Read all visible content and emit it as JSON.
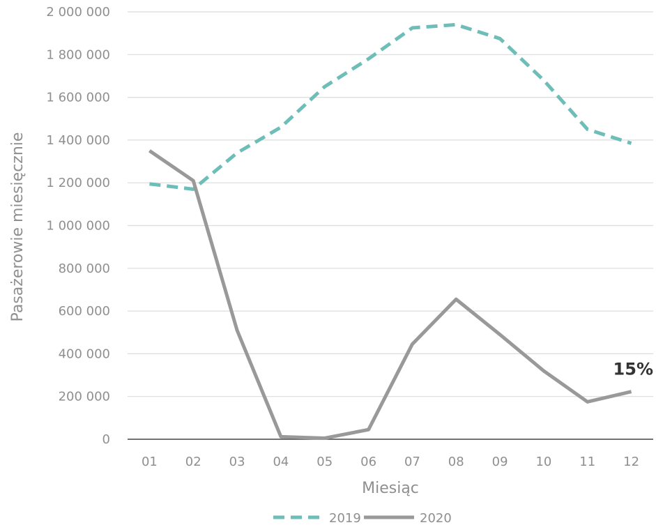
{
  "chart_data": {
    "type": "line",
    "title": "",
    "xlabel": "Miesiąc",
    "ylabel": "Pasażerowie miesięcznie",
    "categories": [
      "01",
      "02",
      "03",
      "04",
      "05",
      "06",
      "07",
      "08",
      "09",
      "10",
      "11",
      "12"
    ],
    "ylim": [
      0,
      2000000
    ],
    "y_ticks": [
      {
        "value": 0,
        "label": "0"
      },
      {
        "value": 200000,
        "label": "200 000"
      },
      {
        "value": 400000,
        "label": "400 000"
      },
      {
        "value": 600000,
        "label": "600 000"
      },
      {
        "value": 800000,
        "label": "800 000"
      },
      {
        "value": 1000000,
        "label": "1 000 000"
      },
      {
        "value": 1200000,
        "label": "1 200 000"
      },
      {
        "value": 1400000,
        "label": "1 400 000"
      },
      {
        "value": 1600000,
        "label": "1 600 000"
      },
      {
        "value": 1800000,
        "label": "1 800 000"
      },
      {
        "value": 2000000,
        "label": "2 000 000"
      }
    ],
    "grid": true,
    "legend": "bottom",
    "series": [
      {
        "name": "2019",
        "color": "#6dbdb8",
        "style": "dashed",
        "values": [
          1195000,
          1170000,
          1340000,
          1460000,
          1650000,
          1780000,
          1925000,
          1940000,
          1875000,
          1680000,
          1450000,
          1385000
        ]
      },
      {
        "name": "2020",
        "color": "#999999",
        "style": "solid",
        "values": [
          1350000,
          1210000,
          510000,
          12000,
          5000,
          45000,
          445000,
          655000,
          490000,
          320000,
          175000,
          223000
        ]
      }
    ],
    "annotations": [
      {
        "text": "15%",
        "series": "2020",
        "category": "12"
      }
    ]
  }
}
